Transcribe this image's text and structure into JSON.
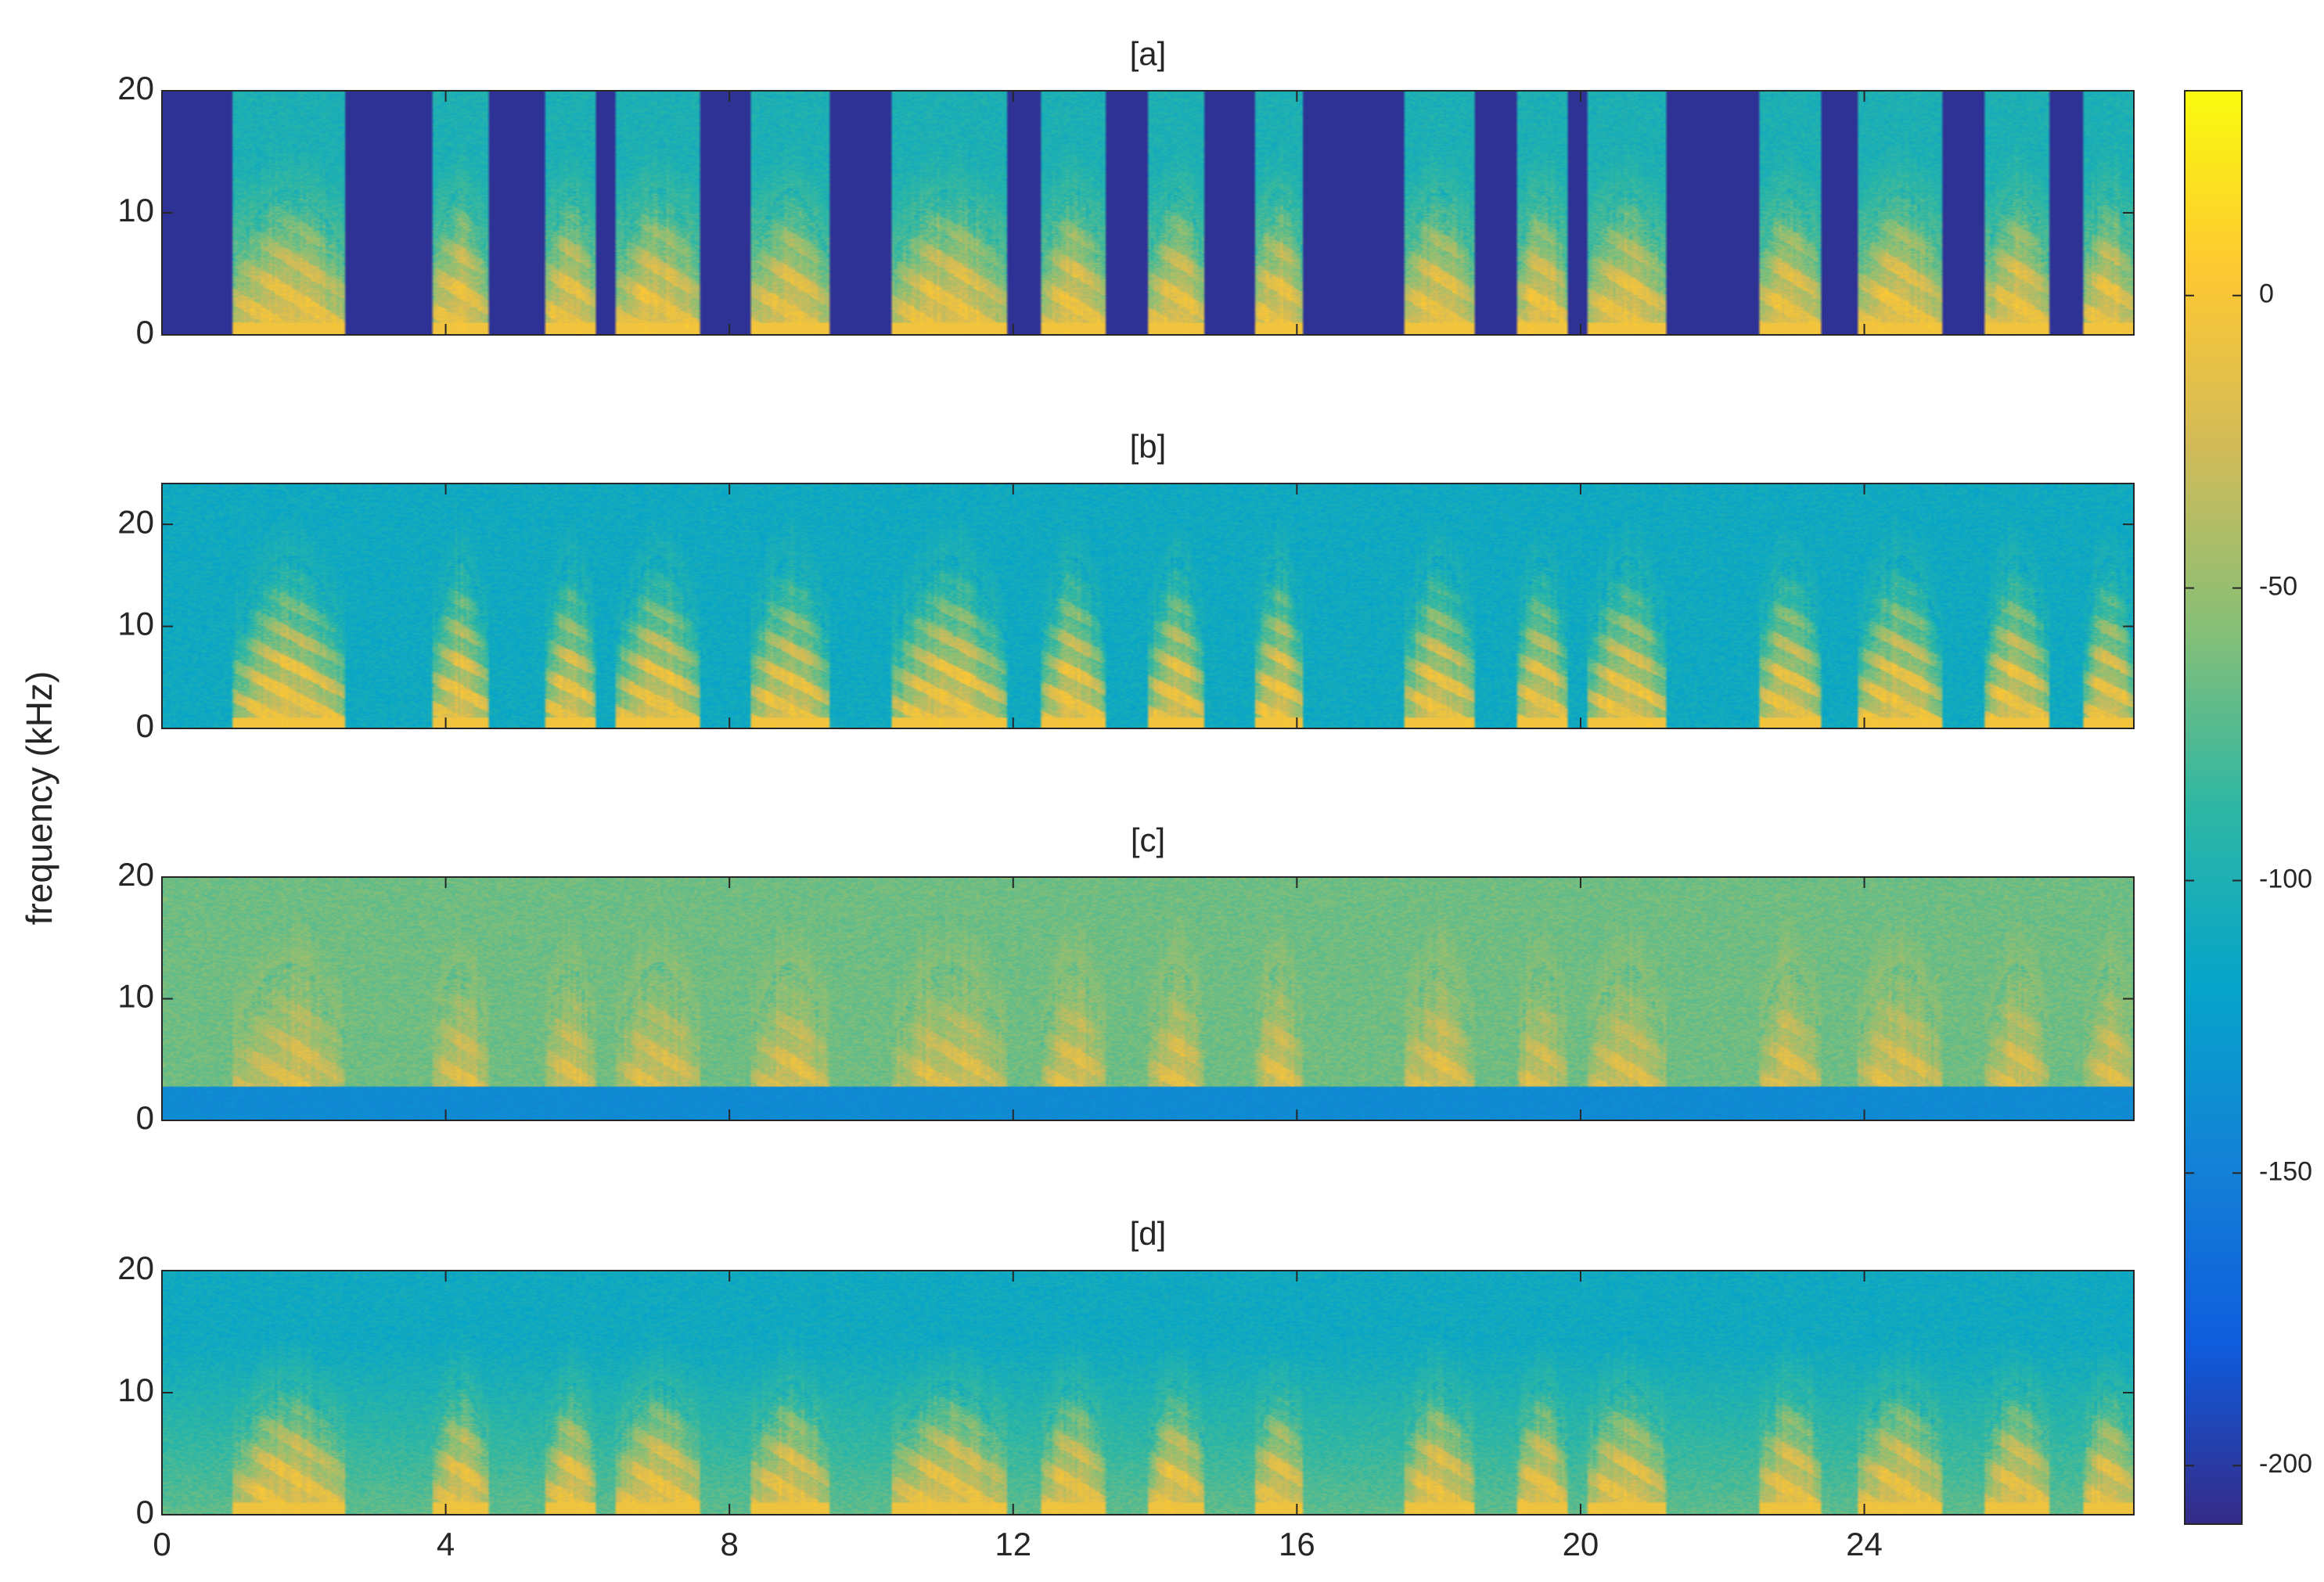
{
  "chart_data": {
    "type": "heatmap",
    "ylabel": "frequency (kHz)",
    "xlabel": "",
    "xlim": [
      0,
      27.8
    ],
    "x_ticks": [
      0,
      4,
      8,
      12,
      16,
      20,
      24
    ],
    "x_tick_labels": [
      "0",
      "4",
      "8",
      "12",
      "16",
      "20",
      "24"
    ],
    "speech_segments_s": [
      [
        1.0,
        2.6
      ],
      [
        3.8,
        4.6
      ],
      [
        5.4,
        6.1
      ],
      [
        6.4,
        7.6
      ],
      [
        8.3,
        9.4
      ],
      [
        10.3,
        11.9
      ],
      [
        12.4,
        13.3
      ],
      [
        13.9,
        14.7
      ],
      [
        15.4,
        16.1
      ],
      [
        17.5,
        18.5
      ],
      [
        19.1,
        19.8
      ],
      [
        20.1,
        21.2
      ],
      [
        22.5,
        23.4
      ],
      [
        23.9,
        25.1
      ],
      [
        25.7,
        26.6
      ],
      [
        27.1,
        27.8
      ]
    ],
    "colorbar": {
      "range": [
        -210,
        35
      ],
      "ticks": [
        0,
        -50,
        -100,
        -150,
        -200
      ],
      "tick_labels": [
        "0",
        "-50",
        "-100",
        "-150",
        "-200"
      ],
      "colormap": "parula",
      "colors": [
        "#352a87",
        "#0f5cdd",
        "#1481d6",
        "#06a4ca",
        "#2eb7a4",
        "#87bf77",
        "#d1bb59",
        "#fec832",
        "#f9fb0e"
      ]
    },
    "panels": [
      {
        "title": "[a]",
        "ylim": [
          0,
          20
        ],
        "y_ticks": [
          0,
          10,
          20
        ],
        "y_tick_labels": [
          "0",
          "10",
          "20"
        ],
        "description": "speech spectrogram with silent gaps zeroed",
        "gap_level_db": -205,
        "background_db": {
          "low_freq": -70,
          "high_freq": -100
        },
        "speech_db": -10,
        "speech_max_khz": 12
      },
      {
        "title": "[b]",
        "ylim": [
          0,
          24
        ],
        "y_ticks": [
          0,
          10,
          20
        ],
        "y_tick_labels": [
          "0",
          "10",
          "20"
        ],
        "description": "speech spectrogram, full band",
        "background_db": {
          "low_freq": -110,
          "high_freq": -110
        },
        "speech_db": -10,
        "speech_max_khz": 17
      },
      {
        "title": "[c]",
        "ylim": [
          0,
          20
        ],
        "y_ticks": [
          0,
          10,
          20
        ],
        "y_tick_labels": [
          "0",
          "10",
          "20"
        ],
        "description": "speech above 3 kHz over noise floor, low band suppressed",
        "background_db": {
          "low_freq": -65,
          "high_freq": -65
        },
        "speech_db": -15,
        "speech_max_khz": 13,
        "low_band_cut_khz": 2.8,
        "low_band_db": -140
      },
      {
        "title": "[d]",
        "ylim": [
          0,
          20
        ],
        "y_ticks": [
          0,
          10,
          20
        ],
        "y_tick_labels": [
          "0",
          "10",
          "20"
        ],
        "description": "speech spectrogram with continuous noise floor",
        "background_db": {
          "low_freq": -70,
          "high_freq": -110
        },
        "speech_db": -12,
        "speech_max_khz": 11
      }
    ]
  }
}
